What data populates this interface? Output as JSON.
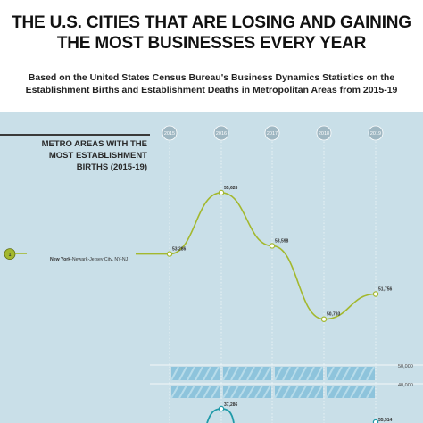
{
  "title": "THE U.S. CITIES THAT ARE LOSING AND GAINING THE MOST BUSINESSES EVERY YEAR",
  "subtitle": "Based on the United States Census Bureau's Business Dynamics Statistics on the Establishment Births and Establishment Deaths in Metropolitan Areas from 2015-19",
  "section_label": "METRO AREAS WITH THE MOST ESTABLISHMENT BIRTHS (2015-19)",
  "metro": {
    "rank": "1",
    "name_bold": "New York",
    "name_rest": "-Newark-Jersey City, NY-NJ"
  },
  "scale_labels": [
    "50,000",
    "40,000"
  ],
  "colors": {
    "line": "#a3b82e",
    "teal_line": "#1f9aa8",
    "panel_bg": "#c9dfe8",
    "year_circle": "#9fb7c2",
    "band": "#8ec4dc"
  },
  "chart_data": {
    "type": "line",
    "title": "",
    "x": [
      "2015",
      "2016",
      "2017",
      "2018",
      "2019"
    ],
    "series": [
      {
        "name": "New York-Newark-Jersey City, NY-NJ",
        "values": [
          53286,
          55628,
          53598,
          50793,
          51756
        ],
        "labels": [
          "53,286",
          "55,628",
          "53,598",
          "50,793",
          "51,756"
        ]
      }
    ],
    "second_chart_partial": {
      "visible_labels": [
        "37,286",
        "55,514"
      ]
    },
    "ylim": [
      50000,
      56000
    ]
  }
}
